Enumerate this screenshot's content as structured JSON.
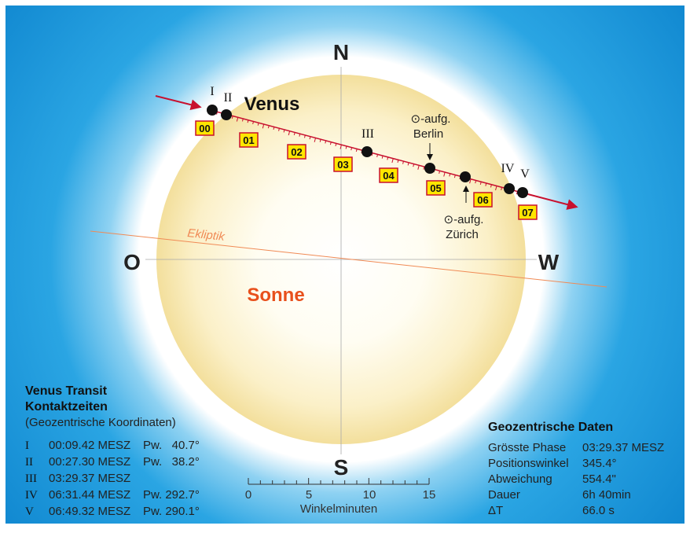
{
  "compass": {
    "north": "N",
    "south": "S",
    "east": "O",
    "west": "W"
  },
  "sun_label": "Sonne",
  "venus_label": "Venus",
  "ecliptic_label": "Ekliptik",
  "contacts": [
    "I",
    "II",
    "III",
    "IV",
    "V"
  ],
  "hours": [
    "00",
    "01",
    "02",
    "03",
    "04",
    "05",
    "06",
    "07"
  ],
  "sunrise_berlin": {
    "line1": "⊙-aufg.",
    "line2": "Berlin"
  },
  "sunrise_zurich": {
    "line1": "⊙-aufg.",
    "line2": "Zürich"
  },
  "scale": {
    "ticks": [
      "0",
      "5",
      "10",
      "15"
    ],
    "label": "Winkelminuten"
  },
  "contact_box": {
    "title1": "Venus Transit",
    "title2": "Kontaktzeiten",
    "subtitle": "(Geozentrische Koordinaten)",
    "rows": [
      {
        "num": "I",
        "time": "00:09.42 MESZ",
        "pw": "Pw.   40.7°"
      },
      {
        "num": "II",
        "time": "00:27.30 MESZ",
        "pw": "Pw.   38.2°"
      },
      {
        "num": "III",
        "time": "03:29.37 MESZ",
        "pw": ""
      },
      {
        "num": "IV",
        "time": "06:31.44 MESZ",
        "pw": "Pw. 292.7°"
      },
      {
        "num": "V",
        "time": "06:49.32 MESZ",
        "pw": "Pw. 290.1°"
      }
    ]
  },
  "geo_box": {
    "title": "Geozentrische Daten",
    "rows": [
      {
        "label": "Grösste Phase",
        "value": "03:29.37 MESZ"
      },
      {
        "label": "Positionswinkel",
        "value": "345.4°"
      },
      {
        "label": "Abweichung",
        "value": "554.4\""
      },
      {
        "label": "Dauer",
        "value": "6h 40min"
      },
      {
        "label": "ΔT",
        "value": "66.0 s"
      }
    ]
  },
  "colors": {
    "sky": "#1a97d8",
    "sun_center": "#ffffff",
    "sun_edge": "#f0d98a",
    "track": "#c8102e",
    "ecliptic": "#f08a55",
    "sun_label": "#e8501c",
    "hour_box": "#ffe600",
    "hour_border": "#c8102e"
  }
}
